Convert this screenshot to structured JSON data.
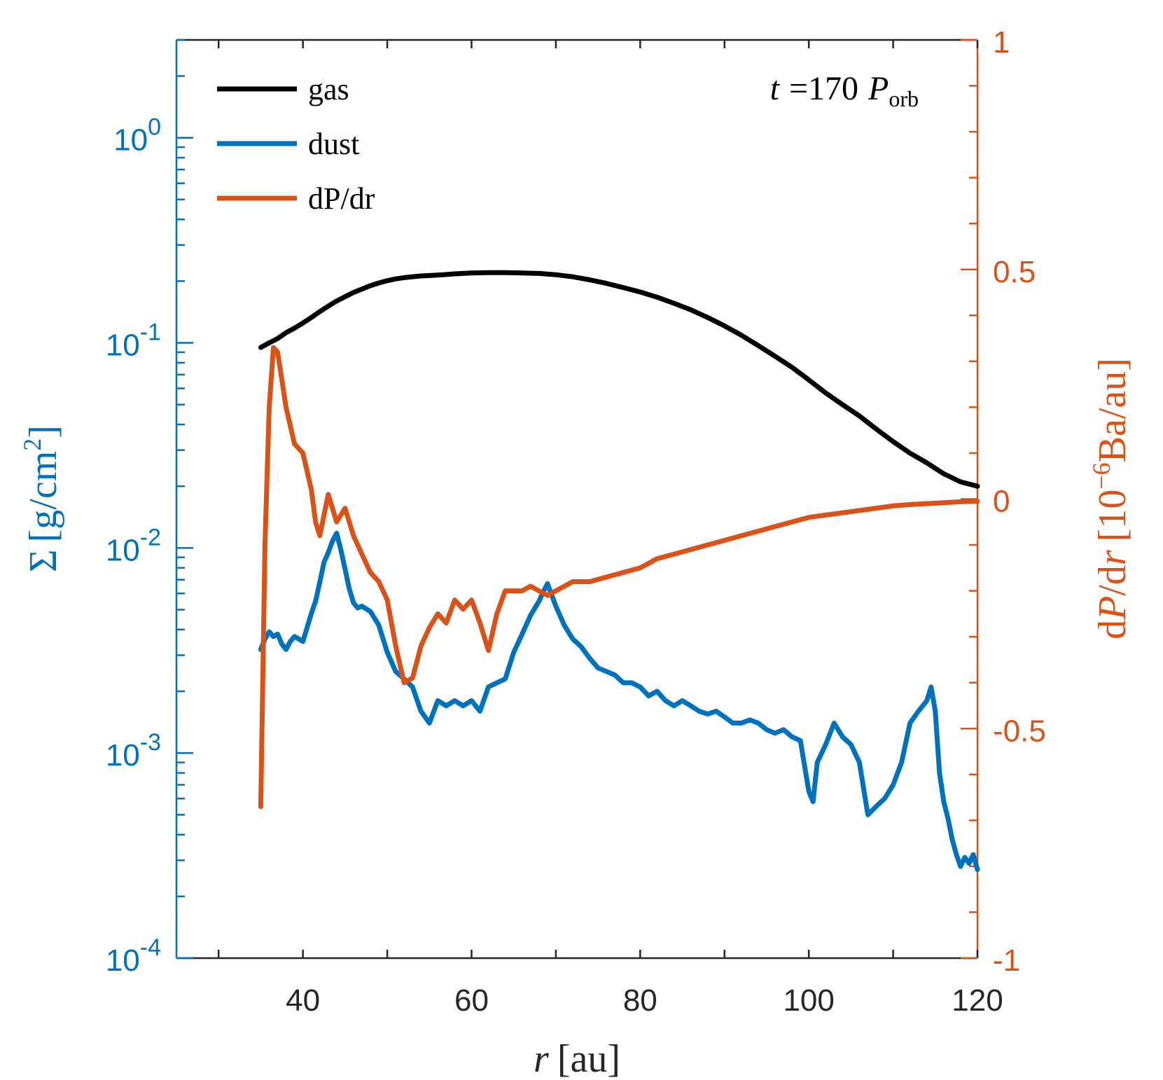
{
  "colors": {
    "gas": "#000000",
    "dust": "#0072BD",
    "dpdr": "#D95319",
    "axis_black": "#262626"
  },
  "legend": {
    "gas": "gas",
    "dust": "dust",
    "dpdr": "dP/dr"
  },
  "annotation": {
    "t_var": "t",
    "t_eq": "=170",
    "p_var": "P",
    "p_sub": "orb"
  },
  "chart_data": {
    "type": "line",
    "xlim": [
      25,
      120
    ],
    "x_ticks": [
      40,
      60,
      80,
      100,
      120
    ],
    "x_tick_labels": [
      "40",
      "60",
      "80",
      "100",
      "120"
    ],
    "xlabel": {
      "var": "r",
      "unit": "[au]"
    },
    "ylim_left": [
      0.0001,
      3
    ],
    "y_left_scale": "log",
    "y_left_ticks": [
      0.0001,
      0.001,
      0.01,
      0.1,
      1
    ],
    "y_left_tick_labels": [
      {
        "base": "10",
        "exp": "-4"
      },
      {
        "base": "10",
        "exp": "-3"
      },
      {
        "base": "10",
        "exp": "-2"
      },
      {
        "base": "10",
        "exp": "-1"
      },
      {
        "base": "10",
        "exp": "0"
      }
    ],
    "ylabel_left": {
      "sym": "Σ",
      "unit": "[g/cm",
      "sup": "2",
      "close": "]"
    },
    "ylim_right": [
      -1,
      1
    ],
    "y_right_ticks": [
      -1,
      -0.5,
      0,
      0.5,
      1
    ],
    "y_right_tick_labels": [
      "-1",
      "-0.5",
      "0",
      "0.5",
      "1"
    ],
    "ylabel_right": {
      "d": "d",
      "p": "P",
      "slash": "/d",
      "r": "r",
      "unit": "[10",
      "sup": "−6",
      "unit2": "Ba/au]"
    },
    "series": [
      {
        "name": "gas",
        "axis": "left",
        "x": [
          35,
          36,
          37,
          38,
          39,
          40,
          41,
          42,
          43,
          44,
          45,
          46,
          47,
          48,
          49,
          50,
          51,
          52,
          54,
          56,
          58,
          60,
          62,
          64,
          66,
          68,
          70,
          72,
          74,
          76,
          78,
          80,
          82,
          84,
          86,
          88,
          90,
          92,
          94,
          96,
          98,
          100,
          102,
          104,
          106,
          108,
          110,
          112,
          114,
          116,
          118,
          120
        ],
        "values": [
          0.095,
          0.1,
          0.105,
          0.112,
          0.118,
          0.125,
          0.133,
          0.142,
          0.151,
          0.16,
          0.168,
          0.176,
          0.183,
          0.19,
          0.196,
          0.201,
          0.205,
          0.208,
          0.212,
          0.214,
          0.217,
          0.219,
          0.22,
          0.22,
          0.219,
          0.218,
          0.215,
          0.21,
          0.203,
          0.195,
          0.186,
          0.177,
          0.167,
          0.156,
          0.145,
          0.133,
          0.121,
          0.109,
          0.097,
          0.086,
          0.076,
          0.066,
          0.057,
          0.05,
          0.044,
          0.038,
          0.033,
          0.029,
          0.026,
          0.023,
          0.021,
          0.02
        ]
      },
      {
        "name": "dust",
        "axis": "left",
        "x": [
          35,
          35.5,
          36,
          36.5,
          37,
          37.5,
          38,
          38.5,
          39,
          39.5,
          40,
          40.5,
          41,
          41.5,
          42,
          42.5,
          43,
          43.5,
          44,
          44.5,
          45,
          45.5,
          46,
          46.5,
          47,
          48,
          49,
          50,
          51,
          52,
          53,
          54,
          55,
          56,
          57,
          58,
          59,
          60,
          61,
          62,
          63,
          64,
          65,
          66,
          67,
          68,
          68.5,
          69,
          70,
          71,
          72,
          73,
          74,
          75,
          76,
          77,
          78,
          79,
          80,
          81,
          82,
          83,
          84,
          85,
          86,
          87,
          88,
          89,
          90,
          91,
          92,
          93,
          94,
          95,
          96,
          97,
          98,
          99,
          100,
          100.5,
          101,
          102,
          103,
          104,
          105,
          106,
          107,
          108,
          109,
          110,
          111,
          112,
          113,
          114,
          114.5,
          115,
          115.5,
          116,
          116.5,
          117,
          117.5,
          118,
          118.5,
          119,
          119.5,
          120
        ],
        "values": [
          0.0032,
          0.0036,
          0.0039,
          0.0037,
          0.0038,
          0.0034,
          0.0032,
          0.0035,
          0.0037,
          0.0036,
          0.0035,
          0.0041,
          0.0048,
          0.0055,
          0.0068,
          0.0085,
          0.0095,
          0.0108,
          0.0118,
          0.0098,
          0.0079,
          0.0063,
          0.0054,
          0.0051,
          0.0052,
          0.0049,
          0.0042,
          0.0031,
          0.0025,
          0.0023,
          0.0021,
          0.0016,
          0.0014,
          0.0018,
          0.0017,
          0.0018,
          0.0017,
          0.0018,
          0.0016,
          0.0021,
          0.0022,
          0.0023,
          0.0031,
          0.0038,
          0.0047,
          0.0055,
          0.0061,
          0.0067,
          0.0052,
          0.0042,
          0.0036,
          0.0033,
          0.0029,
          0.0026,
          0.0025,
          0.0024,
          0.0022,
          0.0022,
          0.0021,
          0.0019,
          0.002,
          0.0018,
          0.0017,
          0.0018,
          0.0017,
          0.0016,
          0.00155,
          0.0016,
          0.0015,
          0.0014,
          0.0014,
          0.00145,
          0.0014,
          0.0013,
          0.00125,
          0.0013,
          0.0012,
          0.00115,
          0.00065,
          0.00058,
          0.0009,
          0.0011,
          0.0014,
          0.0012,
          0.0011,
          0.0009,
          0.0005,
          0.00055,
          0.0006,
          0.0007,
          0.0009,
          0.0014,
          0.0016,
          0.0018,
          0.0021,
          0.0016,
          0.0008,
          0.00058,
          0.00048,
          0.00038,
          0.00032,
          0.00028,
          0.00031,
          0.00029,
          0.00032,
          0.00027
        ]
      },
      {
        "name": "dP/dr",
        "axis": "right",
        "x": [
          35,
          35.5,
          36,
          36.5,
          37,
          38,
          39,
          40,
          40.5,
          41,
          41.5,
          42,
          43,
          44,
          45,
          46,
          47,
          48,
          49,
          50,
          51,
          52,
          53,
          54,
          55,
          56,
          57,
          58,
          59,
          60,
          61,
          62,
          63,
          64,
          65,
          66,
          67,
          68,
          69,
          70,
          72,
          74,
          76,
          78,
          80,
          82,
          84,
          86,
          88,
          90,
          92,
          94,
          96,
          98,
          100,
          102,
          104,
          106,
          108,
          110,
          112,
          114,
          116,
          118,
          120
        ],
        "values": [
          -0.67,
          -0.1,
          0.2,
          0.33,
          0.32,
          0.2,
          0.12,
          0.1,
          0.06,
          0.02,
          -0.05,
          -0.08,
          0.01,
          -0.05,
          -0.02,
          -0.08,
          -0.12,
          -0.16,
          -0.18,
          -0.22,
          -0.32,
          -0.4,
          -0.39,
          -0.32,
          -0.28,
          -0.25,
          -0.27,
          -0.22,
          -0.24,
          -0.22,
          -0.27,
          -0.33,
          -0.25,
          -0.2,
          -0.2,
          -0.2,
          -0.19,
          -0.2,
          -0.21,
          -0.2,
          -0.18,
          -0.18,
          -0.17,
          -0.16,
          -0.15,
          -0.13,
          -0.12,
          -0.11,
          -0.1,
          -0.09,
          -0.08,
          -0.07,
          -0.06,
          -0.05,
          -0.04,
          -0.035,
          -0.03,
          -0.025,
          -0.02,
          -0.015,
          -0.012,
          -0.01,
          -0.008,
          -0.006,
          -0.005
        ]
      }
    ]
  }
}
